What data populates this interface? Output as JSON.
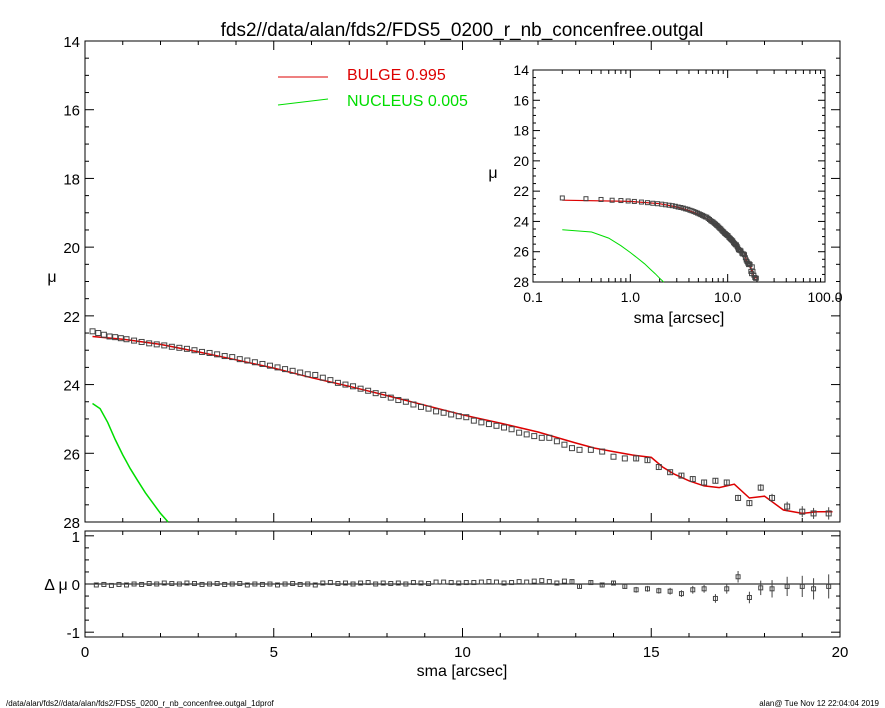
{
  "title": "fds2//data/alan/fds2/FDS5_0200_r_nb_concenfree.outgal",
  "footer_left": "/data/alan/fds2//data/alan/fds2/FDS5_0200_r_nb_concenfree.outgal_1dprof",
  "footer_right": "alan@  Tue Nov 12 22:04:04 2019",
  "colors": {
    "bulge": "#dd0000",
    "nucleus": "#00dd00",
    "data": "#444444",
    "axes": "#000000"
  },
  "chart_data": [
    {
      "id": "main",
      "type": "scatter",
      "xlabel": "sma [arcsec]",
      "ylabel": "μ",
      "xlim": [
        0,
        20
      ],
      "ylim": [
        28,
        14
      ],
      "x_ticks": [
        0,
        5,
        10,
        15,
        20
      ],
      "y_ticks": [
        14,
        16,
        18,
        20,
        22,
        24,
        26,
        28
      ],
      "legend": [
        {
          "name": "BULGE  0.995",
          "color": "#dd0000"
        },
        {
          "name": "NUCLEUS  0.005",
          "color": "#00dd00"
        }
      ],
      "legend_position": "top-center",
      "data_points": {
        "x": [
          0.2,
          0.35,
          0.5,
          0.65,
          0.8,
          0.95,
          1.1,
          1.3,
          1.5,
          1.7,
          1.9,
          2.1,
          2.3,
          2.5,
          2.7,
          2.9,
          3.1,
          3.3,
          3.5,
          3.7,
          3.9,
          4.1,
          4.3,
          4.5,
          4.7,
          4.9,
          5.1,
          5.3,
          5.5,
          5.7,
          5.9,
          6.1,
          6.3,
          6.5,
          6.7,
          6.9,
          7.1,
          7.3,
          7.5,
          7.7,
          7.9,
          8.1,
          8.3,
          8.5,
          8.7,
          8.9,
          9.1,
          9.3,
          9.5,
          9.7,
          9.9,
          10.1,
          10.3,
          10.5,
          10.7,
          10.9,
          11.1,
          11.3,
          11.5,
          11.7,
          11.9,
          12.1,
          12.3,
          12.5,
          12.7,
          12.9,
          13.1,
          13.4,
          13.7,
          14.0,
          14.3,
          14.6,
          14.9,
          15.2,
          15.5,
          15.8,
          16.1,
          16.4,
          16.7,
          17.0,
          17.3,
          17.6,
          17.9,
          18.2,
          18.6,
          19.0,
          19.3,
          19.7
        ],
        "y": [
          22.45,
          22.5,
          22.55,
          22.6,
          22.62,
          22.65,
          22.68,
          22.72,
          22.76,
          22.8,
          22.83,
          22.86,
          22.9,
          22.93,
          22.96,
          23.0,
          23.05,
          23.08,
          23.12,
          23.17,
          23.2,
          23.26,
          23.3,
          23.35,
          23.4,
          23.45,
          23.5,
          23.55,
          23.6,
          23.65,
          23.7,
          23.72,
          23.8,
          23.87,
          23.95,
          24.0,
          24.05,
          24.12,
          24.18,
          24.25,
          24.3,
          24.38,
          24.45,
          24.5,
          24.58,
          24.65,
          24.7,
          24.78,
          24.82,
          24.87,
          24.92,
          24.95,
          25.05,
          25.1,
          25.15,
          25.2,
          25.25,
          25.3,
          25.4,
          25.45,
          25.5,
          25.55,
          25.55,
          25.65,
          25.75,
          25.85,
          25.9,
          25.9,
          25.95,
          26.1,
          26.15,
          26.15,
          26.2,
          26.4,
          26.55,
          26.65,
          26.75,
          26.85,
          26.8,
          26.85,
          27.3,
          27.45,
          27.0,
          27.3,
          27.55,
          27.7,
          27.75,
          27.75
        ],
        "err": [
          0.04,
          0.04,
          0.04,
          0.04,
          0.04,
          0.04,
          0.04,
          0.04,
          0.04,
          0.04,
          0.04,
          0.04,
          0.04,
          0.04,
          0.04,
          0.04,
          0.04,
          0.04,
          0.04,
          0.04,
          0.04,
          0.04,
          0.04,
          0.04,
          0.04,
          0.04,
          0.04,
          0.04,
          0.04,
          0.04,
          0.04,
          0.04,
          0.04,
          0.04,
          0.04,
          0.04,
          0.04,
          0.04,
          0.04,
          0.04,
          0.04,
          0.04,
          0.04,
          0.04,
          0.04,
          0.04,
          0.04,
          0.04,
          0.04,
          0.04,
          0.04,
          0.04,
          0.04,
          0.04,
          0.04,
          0.04,
          0.04,
          0.04,
          0.04,
          0.04,
          0.04,
          0.04,
          0.04,
          0.04,
          0.04,
          0.05,
          0.05,
          0.05,
          0.05,
          0.05,
          0.05,
          0.06,
          0.06,
          0.06,
          0.06,
          0.07,
          0.07,
          0.08,
          0.08,
          0.08,
          0.09,
          0.09,
          0.1,
          0.12,
          0.14,
          0.16,
          0.16,
          0.18
        ]
      },
      "bulge_curve": {
        "x": [
          0.2,
          1.0,
          2.0,
          3.0,
          4.0,
          5.0,
          6.0,
          7.0,
          8.0,
          9.0,
          10.0,
          11.0,
          12.0,
          13.0,
          13.5,
          14.0,
          14.5,
          15.0,
          15.3,
          15.6,
          16.0,
          16.4,
          16.8,
          17.2,
          17.6,
          18.0,
          18.5,
          19.0,
          19.4,
          19.8
        ],
        "y": [
          22.6,
          22.68,
          22.83,
          23.05,
          23.28,
          23.52,
          23.8,
          24.05,
          24.32,
          24.6,
          24.88,
          25.12,
          25.38,
          25.7,
          25.85,
          25.95,
          26.05,
          26.12,
          26.4,
          26.6,
          26.8,
          26.95,
          27.0,
          26.9,
          27.3,
          27.25,
          27.65,
          27.75,
          27.7,
          27.7
        ]
      },
      "nucleus_curve": {
        "x": [
          0.2,
          0.4,
          0.6,
          0.8,
          1.0,
          1.2,
          1.4,
          1.6,
          1.8,
          2.0,
          2.2
        ],
        "y": [
          24.55,
          24.7,
          25.1,
          25.6,
          26.05,
          26.45,
          26.8,
          27.15,
          27.45,
          27.75,
          28.05
        ]
      }
    },
    {
      "id": "inset",
      "type": "scatter",
      "xlabel": "sma [arcsec]",
      "ylabel": "μ",
      "xscale": "log",
      "xlim": [
        0.1,
        100.0
      ],
      "ylim": [
        28,
        14
      ],
      "x_ticks": [
        0.1,
        1.0,
        10.0,
        100.0
      ],
      "x_tick_labels": [
        "0.1",
        "1.0",
        "10.0",
        "100.0"
      ],
      "y_ticks": [
        14,
        16,
        18,
        20,
        22,
        24,
        26,
        28
      ]
    },
    {
      "id": "residual",
      "type": "scatter",
      "xlabel": "sma [arcsec]",
      "ylabel": "Δ μ",
      "xlim": [
        0,
        20
      ],
      "ylim": [
        -1.1,
        1.1
      ],
      "x_ticks": [
        0,
        5,
        10,
        15,
        20
      ],
      "y_ticks": [
        -1,
        0,
        1
      ],
      "zero_line": 0,
      "points": {
        "x": [
          0.3,
          0.5,
          0.7,
          0.9,
          1.1,
          1.3,
          1.5,
          1.7,
          1.9,
          2.1,
          2.3,
          2.5,
          2.7,
          2.9,
          3.1,
          3.3,
          3.5,
          3.7,
          3.9,
          4.1,
          4.3,
          4.5,
          4.7,
          4.9,
          5.1,
          5.3,
          5.5,
          5.7,
          5.9,
          6.1,
          6.3,
          6.5,
          6.7,
          6.9,
          7.1,
          7.3,
          7.5,
          7.7,
          7.9,
          8.1,
          8.3,
          8.5,
          8.7,
          8.9,
          9.1,
          9.3,
          9.5,
          9.7,
          9.9,
          10.1,
          10.3,
          10.5,
          10.7,
          10.9,
          11.1,
          11.3,
          11.5,
          11.7,
          11.9,
          12.1,
          12.3,
          12.5,
          12.7,
          12.9,
          13.1,
          13.4,
          13.7,
          14.0,
          14.3,
          14.6,
          14.9,
          15.2,
          15.5,
          15.8,
          16.1,
          16.4,
          16.7,
          17.0,
          17.3,
          17.6,
          17.9,
          18.2,
          18.6,
          19.0,
          19.3,
          19.7
        ],
        "y": [
          -0.02,
          -0.01,
          -0.03,
          -0.01,
          -0.02,
          0.0,
          -0.01,
          0.01,
          0.0,
          0.02,
          0.01,
          0.0,
          0.02,
          0.01,
          -0.01,
          0.0,
          0.01,
          -0.01,
          0.0,
          0.01,
          -0.02,
          0.0,
          -0.01,
          0.0,
          -0.02,
          0.0,
          0.01,
          -0.01,
          0.0,
          -0.02,
          0.02,
          0.03,
          0.01,
          0.02,
          0.0,
          0.02,
          0.03,
          0.0,
          0.02,
          0.01,
          0.02,
          0.0,
          0.03,
          0.02,
          0.01,
          0.04,
          0.04,
          0.03,
          0.02,
          0.03,
          0.03,
          0.04,
          0.05,
          0.04,
          0.02,
          0.03,
          0.05,
          0.04,
          0.06,
          0.07,
          0.05,
          0.02,
          0.06,
          0.05,
          -0.05,
          0.03,
          -0.02,
          0.02,
          -0.05,
          -0.12,
          -0.1,
          -0.14,
          -0.15,
          -0.2,
          -0.12,
          -0.1,
          -0.3,
          -0.1,
          0.15,
          -0.28,
          -0.08,
          -0.1,
          -0.05,
          -0.05,
          -0.1,
          -0.05
        ],
        "err": [
          0.02,
          0.02,
          0.02,
          0.02,
          0.02,
          0.02,
          0.02,
          0.02,
          0.02,
          0.02,
          0.02,
          0.02,
          0.02,
          0.02,
          0.02,
          0.02,
          0.02,
          0.02,
          0.02,
          0.02,
          0.02,
          0.02,
          0.02,
          0.02,
          0.02,
          0.02,
          0.02,
          0.02,
          0.02,
          0.02,
          0.02,
          0.02,
          0.02,
          0.02,
          0.02,
          0.02,
          0.02,
          0.02,
          0.02,
          0.02,
          0.02,
          0.02,
          0.02,
          0.02,
          0.02,
          0.02,
          0.02,
          0.02,
          0.02,
          0.02,
          0.02,
          0.03,
          0.03,
          0.03,
          0.03,
          0.03,
          0.03,
          0.03,
          0.03,
          0.03,
          0.03,
          0.03,
          0.03,
          0.04,
          0.04,
          0.04,
          0.05,
          0.05,
          0.05,
          0.06,
          0.06,
          0.06,
          0.07,
          0.07,
          0.08,
          0.08,
          0.09,
          0.1,
          0.12,
          0.12,
          0.15,
          0.18,
          0.2,
          0.22,
          0.22,
          0.25
        ]
      }
    }
  ]
}
